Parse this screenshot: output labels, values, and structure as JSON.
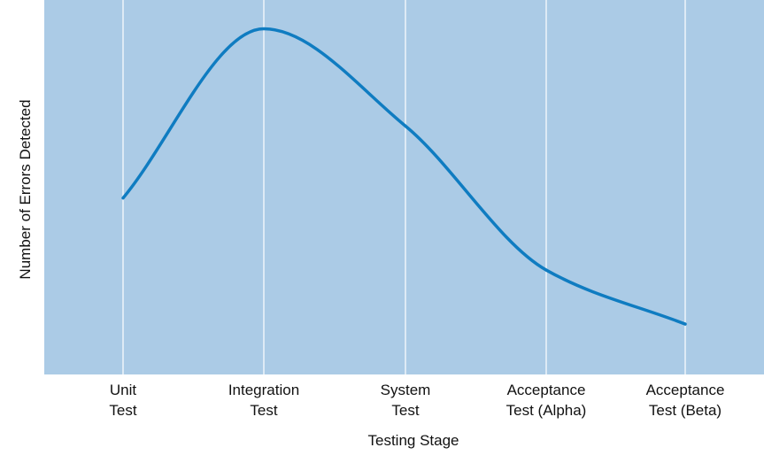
{
  "chart_data": {
    "type": "line",
    "xlabel": "Testing Stage",
    "ylabel": "Number of Errors Detected",
    "categories": [
      [
        "Unit",
        "Test"
      ],
      [
        "Integration",
        "Test"
      ],
      [
        "System",
        "Test"
      ],
      [
        "Acceptance",
        "Test (Alpha)"
      ],
      [
        "Acceptance",
        "Test (Beta)"
      ]
    ],
    "series": [
      {
        "values": [
          0.49,
          0.96,
          0.69,
          0.29,
          0.14
        ],
        "color": "#0f7cc1"
      }
    ],
    "ylim": [
      0,
      1.04
    ],
    "y_ticks_shown": false,
    "grid": "vertical lines at each category",
    "plot_background": "#abcbe6",
    "grid_color": "#ffffff"
  }
}
